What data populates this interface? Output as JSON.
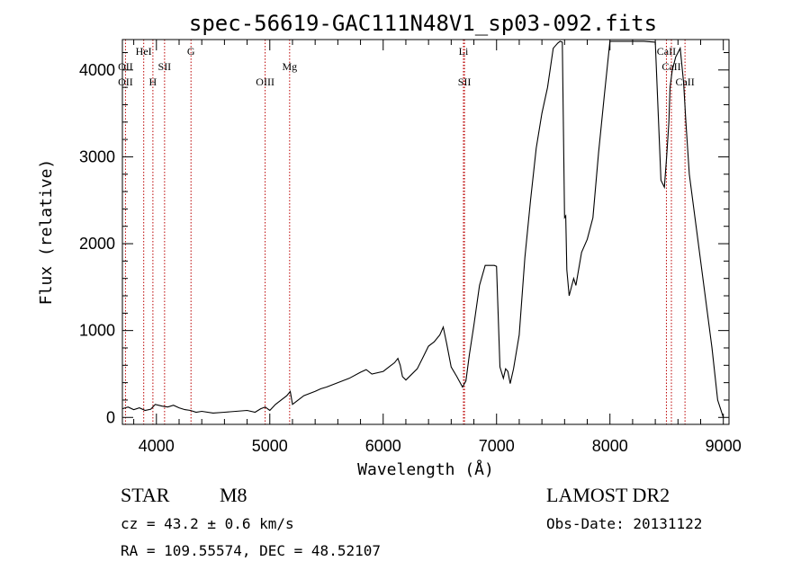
{
  "chart_data": {
    "type": "line",
    "title": "spec-56619-GAC111N48V1_sp03-092.fits",
    "xlabel": "Wavelength (Å)",
    "ylabel": "Flux (relative)",
    "xlim": [
      3700,
      9050
    ],
    "ylim": [
      -80,
      4350
    ],
    "xticks": [
      4000,
      5000,
      6000,
      7000,
      8000,
      9000
    ],
    "yticks": [
      0,
      1000,
      2000,
      3000,
      4000
    ],
    "grid": false,
    "series": [
      {
        "x": [
          3700,
          3750,
          3800,
          3850,
          3900,
          3950,
          3990,
          4050,
          4100,
          4150,
          4200,
          4250,
          4300,
          4350,
          4400,
          4500,
          4600,
          4700,
          4800,
          4870,
          4920,
          4960,
          5000,
          5050,
          5100,
          5150,
          5180,
          5200,
          5250,
          5300,
          5400,
          5450,
          5500,
          5600,
          5700,
          5800,
          5850,
          5900,
          6000,
          6050,
          6100,
          6130,
          6150,
          6170,
          6200,
          6300,
          6350,
          6400,
          6450,
          6500,
          6530,
          6560,
          6600,
          6650,
          6700,
          6730,
          6760,
          6800,
          6850,
          6900,
          6950,
          6980,
          7000,
          7030,
          7060,
          7080,
          7100,
          7120,
          7150,
          7200,
          7250,
          7300,
          7350,
          7400,
          7450,
          7500,
          7520,
          7540,
          7560,
          7580,
          7600,
          7610,
          7620,
          7640,
          7660,
          7680,
          7700,
          7750,
          7800,
          7850,
          7900,
          7950,
          8000,
          8050,
          8100,
          8150,
          8200,
          8300,
          8400,
          8450,
          8480,
          8500,
          8520,
          8530,
          8550,
          8580,
          8600,
          8620,
          8650,
          8670,
          8700,
          8800,
          8900,
          8950,
          9000
        ],
        "y": [
          100,
          120,
          90,
          110,
          80,
          95,
          150,
          130,
          120,
          140,
          110,
          90,
          80,
          60,
          70,
          50,
          60,
          70,
          80,
          60,
          100,
          120,
          80,
          150,
          200,
          250,
          300,
          150,
          200,
          250,
          300,
          330,
          350,
          400,
          450,
          520,
          550,
          500,
          530,
          580,
          630,
          680,
          600,
          470,
          430,
          560,
          690,
          820,
          870,
          950,
          1040,
          850,
          580,
          470,
          350,
          420,
          720,
          1060,
          1520,
          1750,
          1750,
          1750,
          1740,
          580,
          450,
          560,
          530,
          390,
          560,
          950,
          1840,
          2500,
          3100,
          3500,
          3800,
          4250,
          4280,
          4310,
          4330,
          4320,
          2300,
          2320,
          1700,
          1400,
          1500,
          1600,
          1520,
          1900,
          2050,
          2300,
          3050,
          3700,
          4330,
          4330,
          4330,
          4330,
          4330,
          4330,
          4320,
          2730,
          2650,
          3000,
          3400,
          3800,
          4000,
          4150,
          4200,
          4250,
          3850,
          3400,
          2800,
          1800,
          800,
          200,
          0
        ]
      }
    ],
    "spectral_lines": [
      {
        "label": "OII",
        "x": 3727,
        "row": 2
      },
      {
        "label": "OII",
        "x": 3727,
        "row": 3
      },
      {
        "label": "HeI",
        "x": 3888,
        "row": 1
      },
      {
        "label": "H",
        "x": 3969,
        "row": 3
      },
      {
        "label": "SII",
        "x": 4072,
        "row": 2
      },
      {
        "label": "G",
        "x": 4305,
        "row": 1
      },
      {
        "label": "OIII",
        "x": 4959,
        "row": 3
      },
      {
        "label": "Mg",
        "x": 5175,
        "row": 2
      },
      {
        "label": "Li",
        "x": 6708,
        "row": 1
      },
      {
        "label": "SII",
        "x": 6717,
        "row": 3
      },
      {
        "label": "CaII",
        "x": 8498,
        "row": 1
      },
      {
        "label": "CaII",
        "x": 8542,
        "row": 2
      },
      {
        "label": "CaII",
        "x": 8662,
        "row": 3
      }
    ],
    "line_color": "#bb0000"
  },
  "info": {
    "class": "STAR",
    "subclass": "M8",
    "survey": "LAMOST DR2",
    "cz": "cz = 43.2 ± 0.6 km/s",
    "obsdate": "Obs-Date: 20131122",
    "radec": "RA = 109.55574, DEC =  48.52107"
  }
}
